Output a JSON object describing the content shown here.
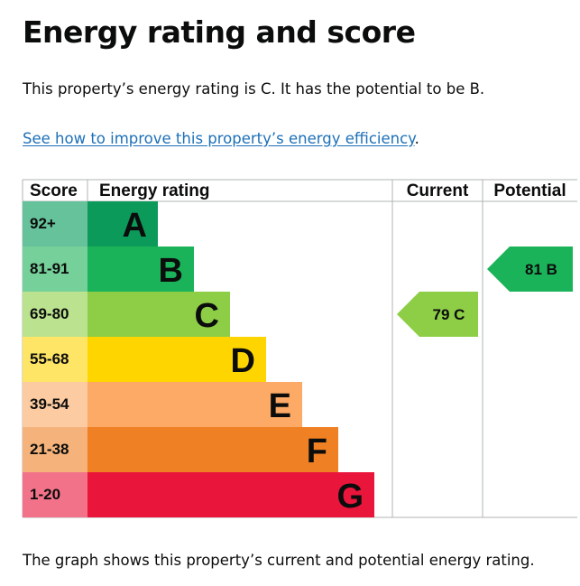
{
  "heading": "Energy rating and score",
  "summary": "This property’s energy rating is C. It has the potential to be B.",
  "link": {
    "text": "See how to improve this property’s energy efficiency",
    "suffix": "."
  },
  "caption": "The graph shows this property’s current and potential energy rating.",
  "chart_data": {
    "type": "bar",
    "columns": [
      "Score",
      "Energy rating",
      "Current",
      "Potential"
    ],
    "bands": [
      {
        "score": "92+",
        "rating": "A",
        "color": "#0c9a5a",
        "score_bg": "#66c29b"
      },
      {
        "score": "81-91",
        "rating": "B",
        "color": "#1bb35a",
        "score_bg": "#76d09a"
      },
      {
        "score": "69-80",
        "rating": "C",
        "color": "#8dce46",
        "score_bg": "#bbe28f"
      },
      {
        "score": "55-68",
        "rating": "D",
        "color": "#ffd500",
        "score_bg": "#ffe566"
      },
      {
        "score": "39-54",
        "rating": "E",
        "color": "#fcaa65",
        "score_bg": "#fdcba2"
      },
      {
        "score": "21-38",
        "rating": "F",
        "color": "#ef8023",
        "score_bg": "#f5b37b"
      },
      {
        "score": "1-20",
        "rating": "G",
        "color": "#e9153b",
        "score_bg": "#f27389"
      }
    ],
    "current": {
      "score": 79,
      "rating": "C",
      "label": "79 C"
    },
    "potential": {
      "score": 81,
      "rating": "B",
      "label": "81 B"
    }
  }
}
